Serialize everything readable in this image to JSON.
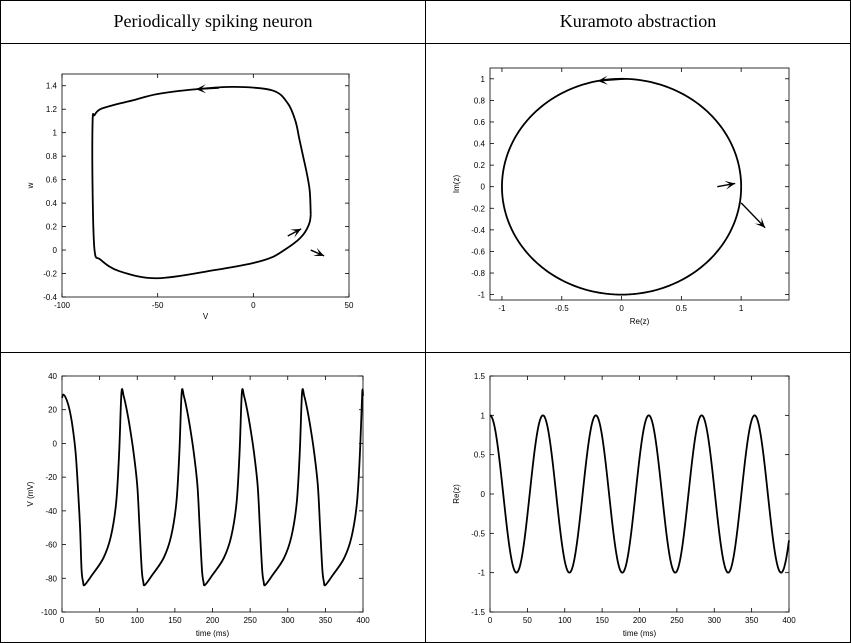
{
  "headers": {
    "left": "Periodically spiking neuron",
    "right": "Kuramoto abstraction"
  },
  "chart_data": [
    {
      "id": "phase-plane",
      "type": "line",
      "title": "",
      "xlabel": "V",
      "ylabel": "w",
      "xlim": [
        -100,
        50
      ],
      "ylim": [
        -0.4,
        1.5
      ],
      "xticks": [
        -100,
        -50,
        0,
        50
      ],
      "yticks": [
        -0.4,
        -0.2,
        0,
        0.2,
        0.4,
        0.6,
        0.8,
        1,
        1.2,
        1.4
      ],
      "xtick_labels": [
        "-100",
        "-50",
        "0",
        "50"
      ],
      "ytick_labels": [
        "-0.4",
        "-0.2",
        "0",
        "0.2",
        "0.4",
        "0.6",
        "0.8",
        "1",
        "1.2",
        "1.4"
      ],
      "grid": false,
      "series": [
        {
          "x": [
            30,
            29.5,
            28,
            26,
            24,
            22,
            18,
            10,
            -10,
            -30,
            -50,
            -62,
            -72,
            -80,
            -83,
            -84,
            -84,
            -83,
            -80,
            -70,
            -50,
            -20,
            0,
            10,
            18,
            23,
            26,
            28,
            29.5,
            30
          ],
          "y": [
            0.3,
            0.5,
            0.65,
            0.8,
            0.95,
            1.1,
            1.25,
            1.36,
            1.39,
            1.37,
            1.33,
            1.28,
            1.24,
            1.2,
            1.15,
            1.1,
            0.5,
            0.0,
            -0.08,
            -0.18,
            -0.24,
            -0.17,
            -0.11,
            -0.06,
            0.02,
            0.08,
            0.13,
            0.18,
            0.24,
            0.3
          ]
        }
      ],
      "annotations": [
        {
          "kind": "arrow",
          "x": [
            30,
            37
          ],
          "y": [
            0.0,
            -0.05
          ]
        },
        {
          "kind": "arrow",
          "x": [
            18,
            25
          ],
          "y": [
            0.12,
            0.18
          ]
        },
        {
          "kind": "arrow",
          "x": [
            -18,
            -30
          ],
          "y": [
            1.38,
            1.37
          ]
        }
      ]
    },
    {
      "id": "unit-circle",
      "type": "line",
      "title": "",
      "xlabel": "Re(z)",
      "ylabel": "Im(z)",
      "xlim": [
        -1.1,
        1.4
      ],
      "ylim": [
        -1.05,
        1.1
      ],
      "xticks": [
        -1,
        -0.5,
        0,
        0.5,
        1
      ],
      "yticks": [
        -1,
        -0.8,
        -0.6,
        -0.4,
        -0.2,
        0,
        0.2,
        0.4,
        0.6,
        0.8,
        1
      ],
      "xtick_labels": [
        "-1",
        "-0.5",
        "0",
        "0.5",
        "1"
      ],
      "ytick_labels": [
        "-1",
        "-0.8",
        "-0.6",
        "-0.4",
        "-0.2",
        "0",
        "0.2",
        "0.4",
        "0.6",
        "0.8",
        "1"
      ],
      "grid": false,
      "series": [
        {
          "shape": "circle",
          "radius": 1
        }
      ],
      "annotations": [
        {
          "kind": "arrow",
          "x": [
            0.8,
            0.95
          ],
          "y": [
            0.0,
            0.03
          ]
        },
        {
          "kind": "arrow",
          "x": [
            1.0,
            1.2
          ],
          "y": [
            -0.15,
            -0.38
          ]
        },
        {
          "kind": "arrow",
          "x": [
            0.05,
            -0.2
          ],
          "y": [
            1.0,
            0.98
          ]
        }
      ]
    },
    {
      "id": "voltage-trace",
      "type": "line",
      "title": "",
      "xlabel": "time (ms)",
      "ylabel": "V (mV)",
      "xlim": [
        0,
        400
      ],
      "ylim": [
        -100,
        40
      ],
      "xticks": [
        0,
        50,
        100,
        150,
        200,
        250,
        300,
        350,
        400
      ],
      "yticks": [
        -100,
        -80,
        -60,
        -40,
        -20,
        0,
        20,
        40
      ],
      "xtick_labels": [
        "0",
        "50",
        "100",
        "150",
        "200",
        "250",
        "300",
        "350",
        "400"
      ],
      "ytick_labels": [
        "-100",
        "-80",
        "-60",
        "-40",
        "-20",
        "0",
        "20",
        "40"
      ],
      "grid": false,
      "series": [
        {
          "x": [
            0,
            2,
            6,
            10,
            14,
            18,
            21,
            24,
            26,
            28,
            30,
            40,
            55,
            65,
            72,
            76,
            79,
            82,
            86,
            90,
            95,
            100,
            103,
            106,
            108,
            110,
            120,
            135,
            145,
            152,
            156,
            159,
            162,
            166,
            170,
            175,
            180,
            183,
            186,
            188,
            190,
            200,
            215,
            225,
            232,
            236,
            239,
            242,
            246,
            250,
            255,
            260,
            263,
            266,
            268,
            270,
            280,
            295,
            305,
            312,
            316,
            319,
            322,
            326,
            330,
            335,
            340,
            343,
            346,
            348,
            350,
            360,
            375,
            385,
            392,
            396,
            399,
            400
          ],
          "y": [
            27,
            29,
            26,
            20,
            10,
            -5,
            -25,
            -50,
            -75,
            -82,
            -84,
            -78,
            -68,
            -55,
            -35,
            -5,
            30,
            28,
            20,
            10,
            -5,
            -25,
            -50,
            -75,
            -82,
            -84,
            -78,
            -68,
            -55,
            -35,
            -5,
            30,
            28,
            20,
            10,
            -5,
            -25,
            -50,
            -75,
            -82,
            -84,
            -78,
            -68,
            -55,
            -35,
            -5,
            30,
            28,
            20,
            10,
            -5,
            -25,
            -50,
            -75,
            -82,
            -84,
            -78,
            -68,
            -55,
            -35,
            -5,
            30,
            28,
            20,
            10,
            -5,
            -25,
            -50,
            -75,
            -82,
            -84,
            -78,
            -68,
            -55,
            -35,
            -5,
            30,
            28
          ]
        }
      ]
    },
    {
      "id": "real-part-trace",
      "type": "line",
      "title": "",
      "xlabel": "time (ms)",
      "ylabel": "Re(z)",
      "xlim": [
        0,
        400
      ],
      "ylim": [
        -1.5,
        1.5
      ],
      "xticks": [
        0,
        50,
        100,
        150,
        200,
        250,
        300,
        350,
        400
      ],
      "yticks": [
        -1.5,
        -1,
        -0.5,
        0,
        0.5,
        1,
        1.5
      ],
      "xtick_labels": [
        "0",
        "50",
        "100",
        "150",
        "200",
        "250",
        "300",
        "350",
        "400"
      ],
      "ytick_labels": [
        "-1.5",
        "-1",
        "-0.5",
        "0",
        "0.5",
        "1",
        "1.5"
      ],
      "grid": false,
      "series": [
        {
          "function": "cos",
          "period": 70.8,
          "amplitude": 1,
          "x_start": 0,
          "x_end": 400
        }
      ]
    }
  ]
}
